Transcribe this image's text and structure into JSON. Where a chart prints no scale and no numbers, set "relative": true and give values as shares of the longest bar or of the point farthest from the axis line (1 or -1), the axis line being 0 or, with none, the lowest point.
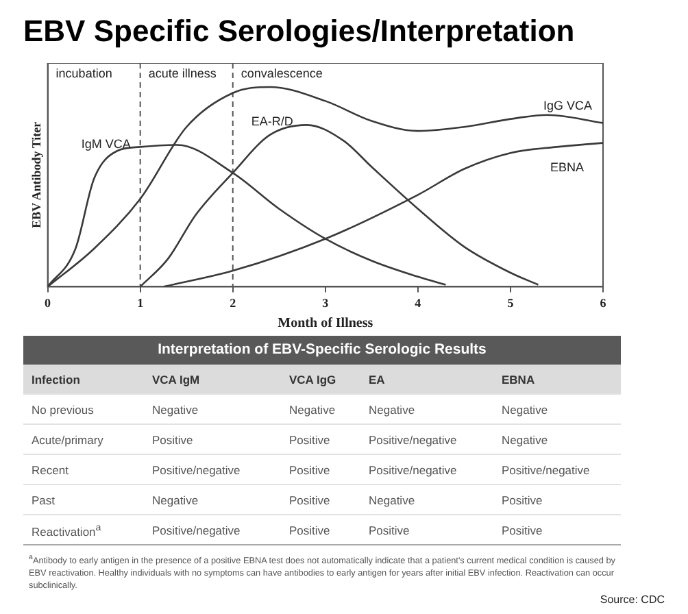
{
  "chart_data": [
    {
      "type": "line",
      "title": "EBV Specific Serologies/Interpretation",
      "xlabel": "Month of Illness",
      "ylabel": "EBV Antibody Titer",
      "relative": true,
      "xlim": [
        0,
        6
      ],
      "xticks": [
        0,
        1,
        2,
        3,
        4,
        5,
        6
      ],
      "grid": false,
      "legend": false,
      "marker": "none",
      "line_style": "solid",
      "series": [
        {
          "name": "IgM VCA",
          "color": "#3a3a3a",
          "x": [
            0,
            0.3,
            0.5,
            0.75,
            1,
            1.4,
            2,
            2.5,
            3,
            3.5,
            4,
            4.3
          ],
          "values": [
            0,
            0.19,
            0.54,
            0.68,
            0.7,
            0.71,
            0.57,
            0.39,
            0.24,
            0.13,
            0.05,
            0.01
          ]
        },
        {
          "name": "IgG VCA",
          "color": "#3a3a3a",
          "x": [
            0,
            0.5,
            1,
            1.5,
            2,
            2.4,
            3,
            3.5,
            4,
            4.5,
            5,
            5.4,
            6
          ],
          "values": [
            0,
            0.19,
            0.44,
            0.8,
            0.97,
            1,
            0.93,
            0.83,
            0.78,
            0.8,
            0.84,
            0.86,
            0.82
          ]
        },
        {
          "name": "EA-R/D",
          "color": "#3a3a3a",
          "x": [
            1,
            1.3,
            1.6,
            2,
            2.4,
            2.8,
            3.2,
            3.5,
            4,
            4.5,
            5,
            5.3
          ],
          "values": [
            0,
            0.14,
            0.36,
            0.57,
            0.76,
            0.81,
            0.73,
            0.6,
            0.39,
            0.2,
            0.07,
            0.01
          ]
        },
        {
          "name": "EBNA",
          "color": "#3a3a3a",
          "x": [
            1.25,
            2,
            3,
            4,
            4.5,
            5,
            5.5,
            6
          ],
          "values": [
            0,
            0.08,
            0.24,
            0.46,
            0.59,
            0.67,
            0.7,
            0.72
          ]
        }
      ],
      "ref_lines": [
        {
          "axis": "x",
          "value": 1,
          "line_style": "dashed",
          "color": "#555555"
        },
        {
          "axis": "x",
          "value": 2,
          "line_style": "dashed",
          "color": "#555555"
        }
      ],
      "annotations": [
        "incubation",
        "acute illness",
        "convalescence"
      ]
    },
    {
      "type": "other",
      "title": "Interpretation of EBV-Specific Serologic Results",
      "annotations": [
        "Infection",
        "VCA IgM",
        "VCA IgG",
        "EA",
        "EBNA",
        "No previous",
        "Negative",
        "Negative",
        "Negative",
        "Negative",
        "Acute/primary",
        "Positive",
        "Positive",
        "Positive/negative",
        "Negative",
        "Recent",
        "Positive/negative",
        "Positive",
        "Positive/negative",
        "Positive/negative",
        "Past",
        "Negative",
        "Positive",
        "Negative",
        "Positive",
        "Reactivation$^{a}$",
        "Positive/negative",
        "Positive",
        "Positive",
        "Positive",
        "$^{a}$Antibody to early antigen in the presence of a positive EBNA test does not automatically indicate that a patient's current medical condition is caused by EBV reactivation. Healthy individuals with no symptoms can have antibodies to early antigen for years after initial EBV infection. Reactivation can occur subclinically.",
        "Source: CDC"
      ]
    }
  ]
}
